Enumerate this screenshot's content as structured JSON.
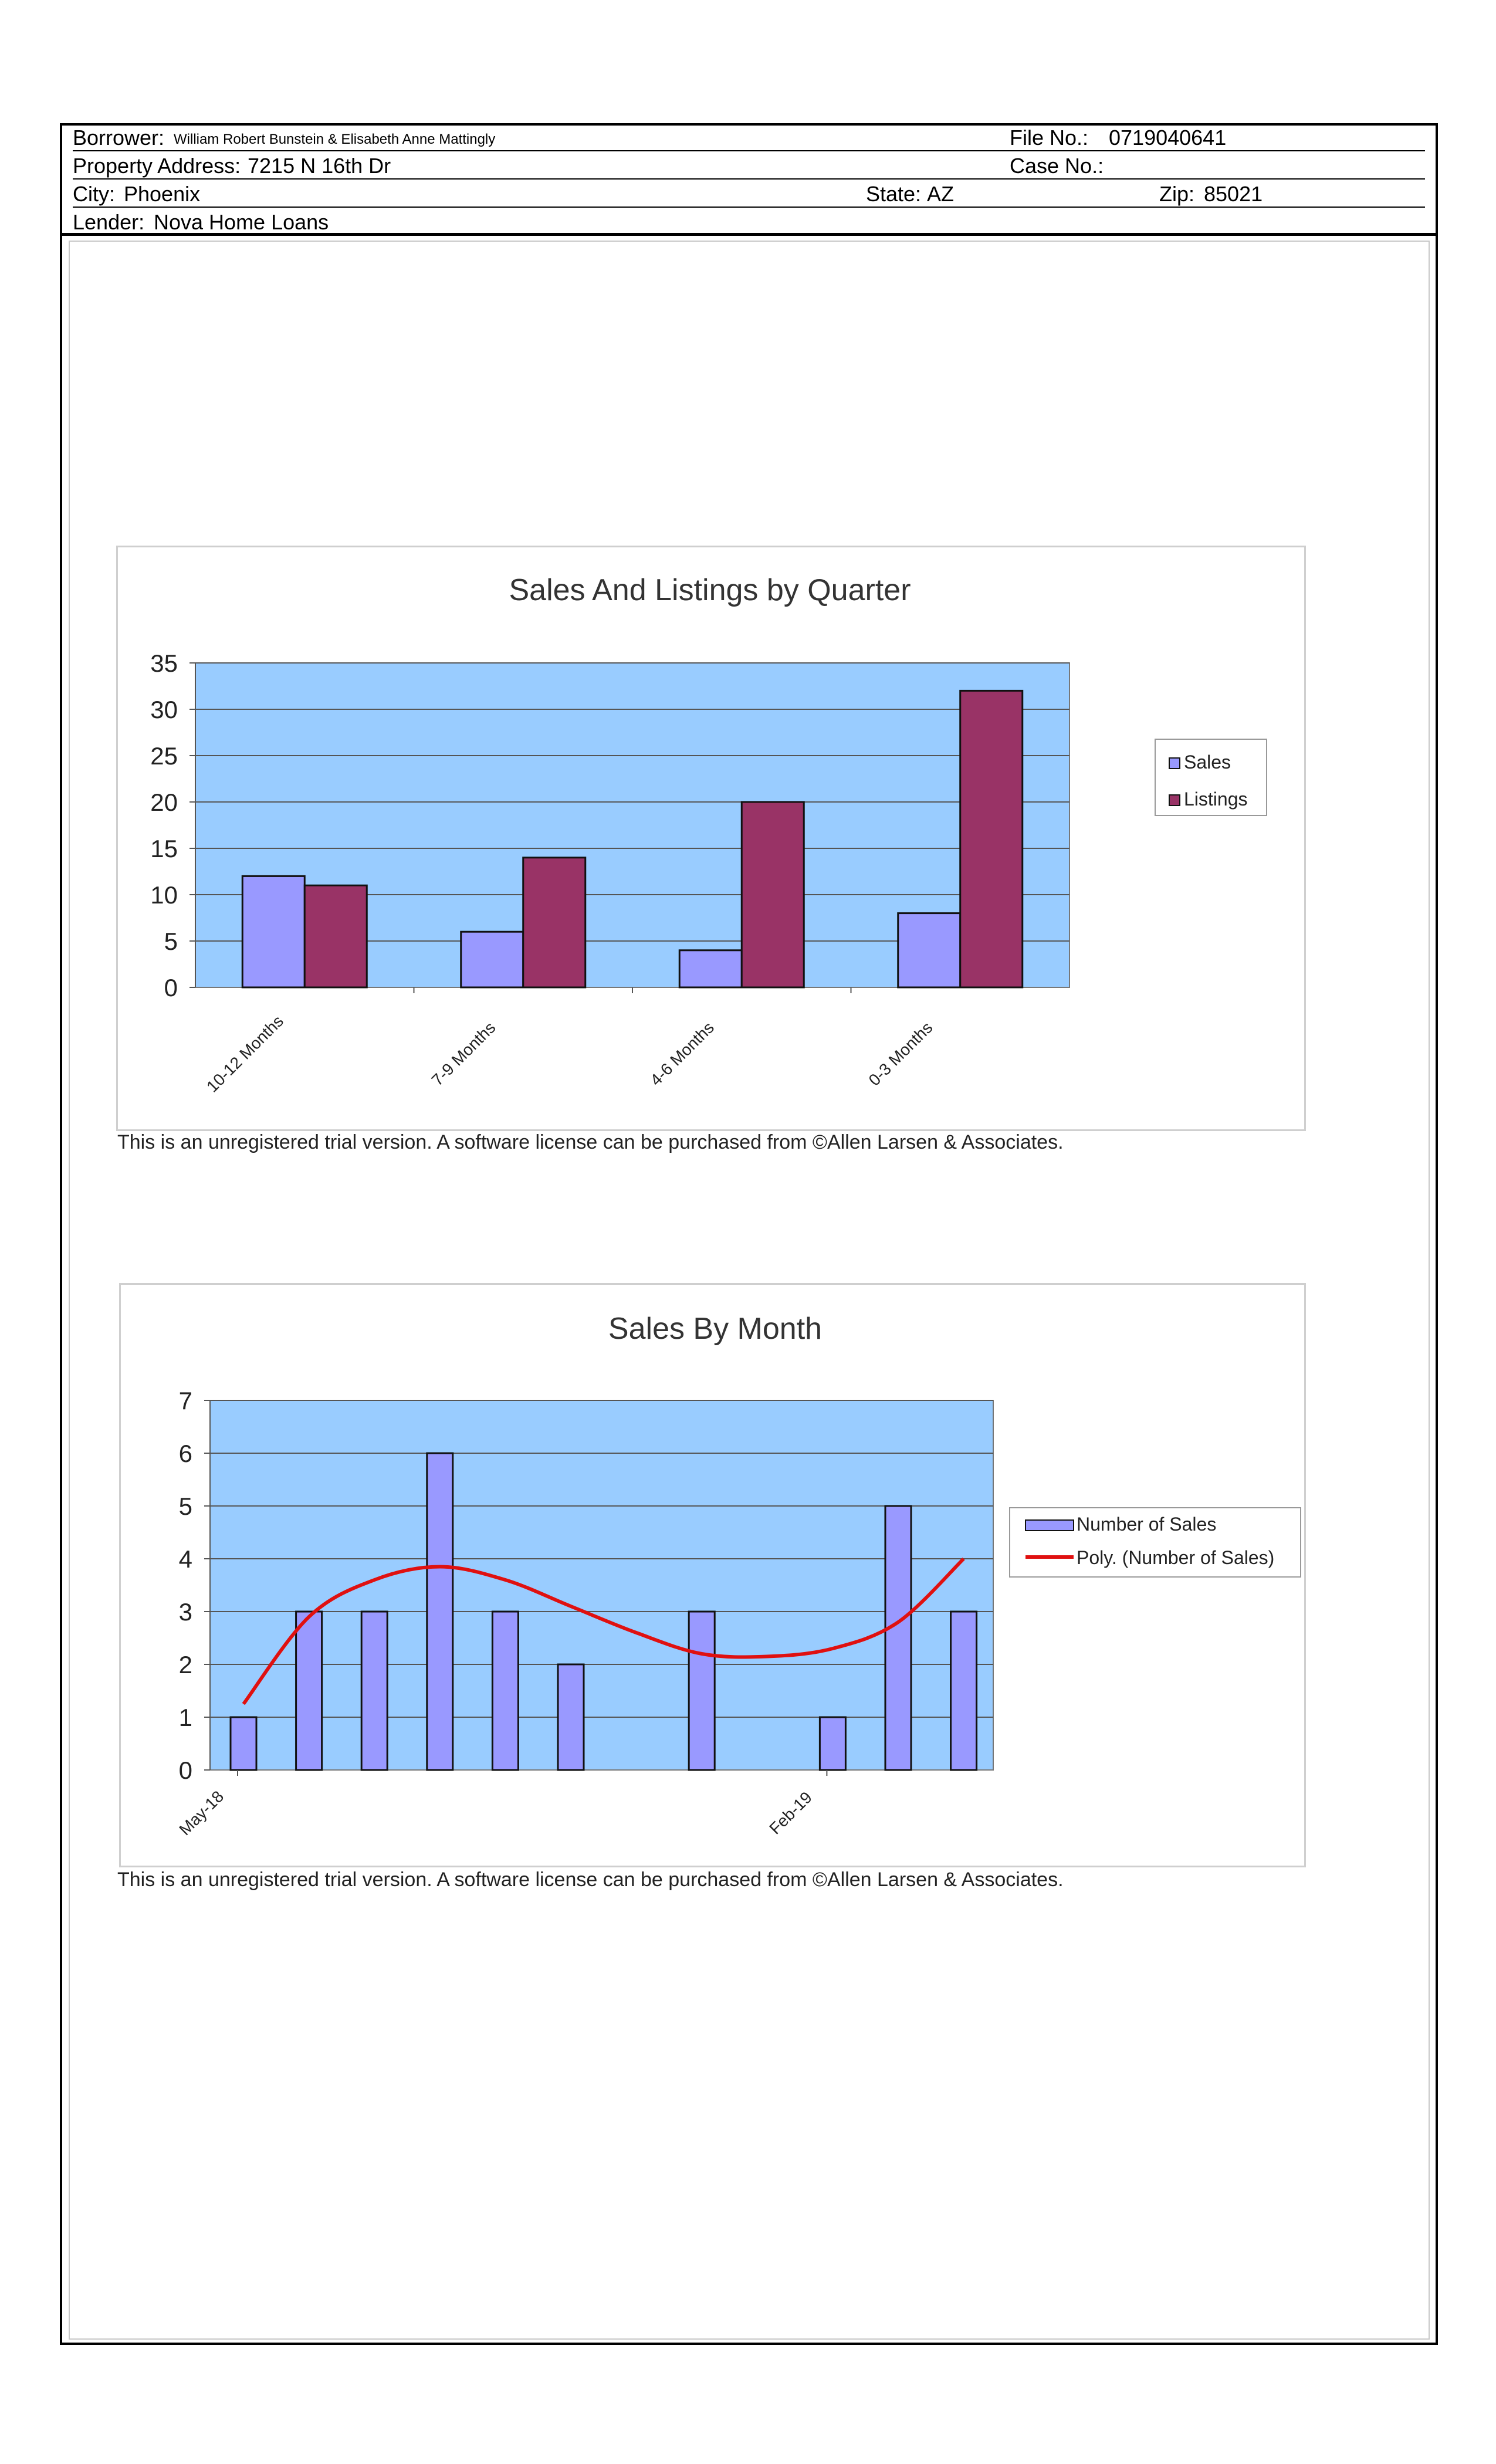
{
  "header": {
    "borrower_label": "Borrower:",
    "borrower_value": "William Robert Bunstein & Elisabeth Anne Mattingly",
    "file_no_label": "File No.:",
    "file_no_value": "0719040641",
    "property_label": "Property Address:",
    "property_value": "7215 N 16th Dr",
    "case_no_label": "Case No.:",
    "city_label": "City:",
    "city_value": "Phoenix",
    "state_label": "State:",
    "state_value": "AZ",
    "zip_label": "Zip:",
    "zip_value": "85021",
    "lender_label": "Lender:",
    "lender_value": "Nova Home Loans"
  },
  "footnotes": {
    "chart1": "This is an unregistered trial version. A software license can be purchased from ©Allen Larsen & Associates.",
    "chart2": "This is an unregistered trial version. A software license can be purchased from ©Allen Larsen & Associates."
  },
  "colors": {
    "plot_bg": "#99ccff",
    "sales": "#9999ff",
    "listings": "#993366",
    "trend": "#e01010"
  },
  "chart_data": [
    {
      "type": "bar",
      "title": "Sales And Listings by Quarter",
      "categories": [
        "10-12 Months",
        "7-9 Months",
        "4-6 Months",
        "0-3 Months"
      ],
      "series": [
        {
          "name": "Sales",
          "values": [
            12,
            6,
            4,
            8
          ]
        },
        {
          "name": "Listings",
          "values": [
            11,
            14,
            20,
            32
          ]
        }
      ],
      "ylim": [
        0,
        35
      ],
      "yticks": [
        "0",
        "5",
        "10",
        "15",
        "20",
        "25",
        "30",
        "35"
      ],
      "grid": true,
      "legend": "right"
    },
    {
      "type": "bar",
      "title": "Sales By Month",
      "x_tick_labels": [
        "May-18",
        "Feb-19"
      ],
      "series": [
        {
          "name": "Number of Sales",
          "values": [
            1,
            3,
            3,
            6,
            3,
            2,
            0,
            3,
            0,
            1,
            5,
            3
          ]
        },
        {
          "name": "Poly. (Number of Sales)",
          "type": "line",
          "trend": "polynomial",
          "values": [
            1.25,
            2.9,
            3.6,
            3.85,
            3.6,
            3.1,
            2.6,
            2.2,
            2.15,
            2.3,
            2.8,
            4.0
          ]
        }
      ],
      "ylim": [
        0,
        7
      ],
      "yticks": [
        "0",
        "1",
        "2",
        "3",
        "4",
        "5",
        "6",
        "7"
      ],
      "grid": true,
      "legend": "right"
    }
  ]
}
